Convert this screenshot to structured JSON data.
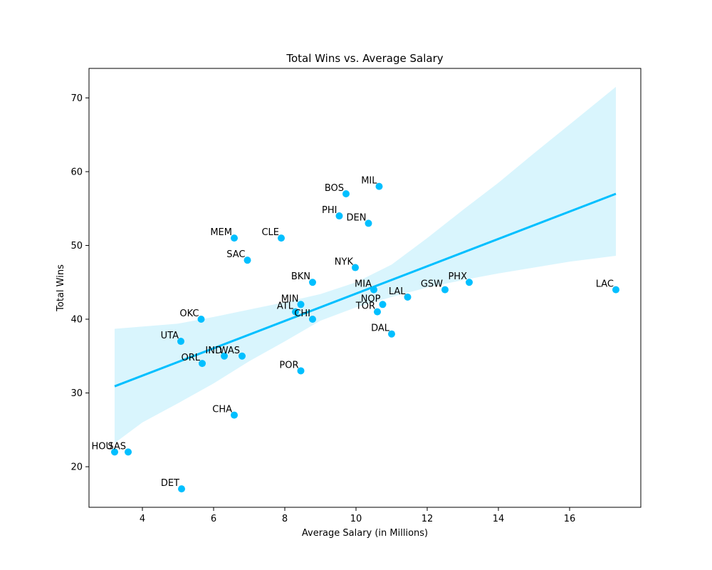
{
  "chart_data": {
    "type": "scatter",
    "title": "Total Wins vs. Average Salary",
    "xlabel": "Average Salary (in Millions)",
    "ylabel": "Total Wins",
    "xlim": [
      2.5,
      18.0
    ],
    "ylim": [
      14.5,
      74.0
    ],
    "xticks": [
      4,
      6,
      8,
      10,
      12,
      14,
      16
    ],
    "yticks": [
      20,
      30,
      40,
      50,
      60,
      70
    ],
    "grid": false,
    "point_color": "#00BFFF",
    "regression": {
      "line_color": "#00BFFF",
      "band_color": "#D9F5FD",
      "x_range": [
        3.22,
        17.3
      ],
      "line": [
        [
          3.22,
          30.9
        ],
        [
          17.3,
          57.0
        ]
      ],
      "band_upper": [
        [
          3.22,
          38.7
        ],
        [
          5.0,
          39.4
        ],
        [
          6.0,
          40.3
        ],
        [
          7.0,
          41.3
        ],
        [
          8.0,
          42.3
        ],
        [
          9.0,
          43.4
        ],
        [
          10.0,
          45.0
        ],
        [
          11.0,
          47.4
        ],
        [
          12.0,
          51.0
        ],
        [
          13.0,
          54.8
        ],
        [
          14.0,
          58.5
        ],
        [
          15.0,
          62.5
        ],
        [
          16.0,
          66.4
        ],
        [
          17.3,
          71.5
        ]
      ],
      "band_lower": [
        [
          3.22,
          23.2
        ],
        [
          4.0,
          26.0
        ],
        [
          5.0,
          28.6
        ],
        [
          6.0,
          31.3
        ],
        [
          7.0,
          34.3
        ],
        [
          8.0,
          37.0
        ],
        [
          9.0,
          39.8
        ],
        [
          10.0,
          41.6
        ],
        [
          11.0,
          43.0
        ],
        [
          12.0,
          44.3
        ],
        [
          13.0,
          45.3
        ],
        [
          14.0,
          46.2
        ],
        [
          15.0,
          47.0
        ],
        [
          16.0,
          47.8
        ],
        [
          17.3,
          48.6
        ]
      ]
    },
    "points": [
      {
        "label": "MIL",
        "x": 10.65,
        "y": 58
      },
      {
        "label": "BOS",
        "x": 9.72,
        "y": 57
      },
      {
        "label": "PHI",
        "x": 9.53,
        "y": 54
      },
      {
        "label": "DEN",
        "x": 10.35,
        "y": 53
      },
      {
        "label": "MEM",
        "x": 6.58,
        "y": 51
      },
      {
        "label": "CLE",
        "x": 7.9,
        "y": 51
      },
      {
        "label": "SAC",
        "x": 6.95,
        "y": 48
      },
      {
        "label": "NYK",
        "x": 9.98,
        "y": 47
      },
      {
        "label": "BKN",
        "x": 8.78,
        "y": 45
      },
      {
        "label": "PHX",
        "x": 13.18,
        "y": 45
      },
      {
        "label": "MIA",
        "x": 10.5,
        "y": 44
      },
      {
        "label": "GSW",
        "x": 12.5,
        "y": 44
      },
      {
        "label": "LAC",
        "x": 17.3,
        "y": 44
      },
      {
        "label": "LAL",
        "x": 11.45,
        "y": 43
      },
      {
        "label": "MIN",
        "x": 8.45,
        "y": 42
      },
      {
        "label": "NOP",
        "x": 10.75,
        "y": 42
      },
      {
        "label": "ATL",
        "x": 8.3,
        "y": 41
      },
      {
        "label": "TOR",
        "x": 10.6,
        "y": 41
      },
      {
        "label": "OKC",
        "x": 5.65,
        "y": 40
      },
      {
        "label": "CHI",
        "x": 8.78,
        "y": 40
      },
      {
        "label": "DAL",
        "x": 11.0,
        "y": 38
      },
      {
        "label": "UTA",
        "x": 5.08,
        "y": 37
      },
      {
        "label": "IND",
        "x": 6.3,
        "y": 35
      },
      {
        "label": "WAS",
        "x": 6.8,
        "y": 35
      },
      {
        "label": "ORL",
        "x": 5.68,
        "y": 34
      },
      {
        "label": "POR",
        "x": 8.45,
        "y": 33
      },
      {
        "label": "CHA",
        "x": 6.58,
        "y": 27
      },
      {
        "label": "HOU",
        "x": 3.22,
        "y": 22
      },
      {
        "label": "SAS",
        "x": 3.6,
        "y": 22
      },
      {
        "label": "DET",
        "x": 5.1,
        "y": 17
      }
    ]
  }
}
